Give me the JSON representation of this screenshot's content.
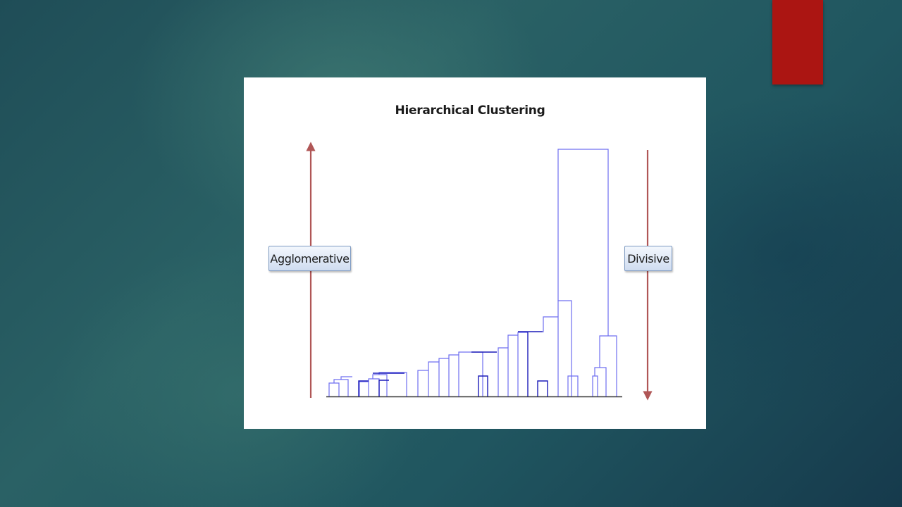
{
  "slide": {
    "accent_color": "#ab1512"
  },
  "figure": {
    "title": "Hierarchical Clustering",
    "left_label": "Agglomerative",
    "right_label": "Divisive",
    "arrow_color": "#b05656",
    "dendrogram_color": "#6f6ff0",
    "dendrogram_dark_color": "#1c1cb8",
    "baseline_color": "#333333"
  }
}
